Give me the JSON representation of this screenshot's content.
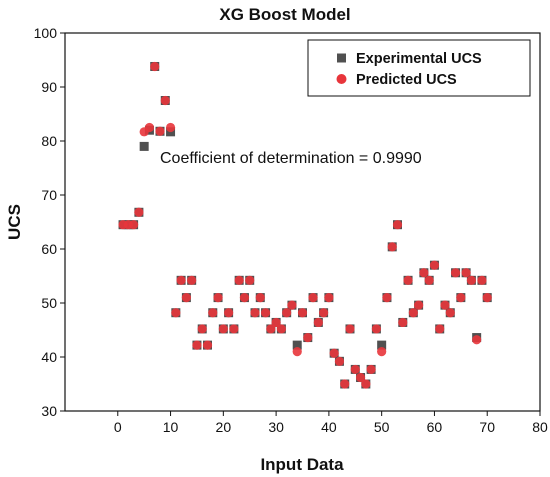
{
  "chart_data": {
    "type": "scatter",
    "title": "XG Boost Model",
    "xlabel": "Input Data",
    "ylabel": "UCS",
    "xlim": [
      -10,
      80
    ],
    "ylim": [
      30,
      100
    ],
    "xticks": [
      0,
      10,
      20,
      30,
      40,
      50,
      60,
      70,
      80
    ],
    "yticks": [
      30,
      40,
      50,
      60,
      70,
      80,
      90,
      100
    ],
    "annotation": "Coefficient of determination = 0.9990",
    "legend_position": "top-right",
    "series": [
      {
        "name": "Experimental UCS",
        "marker": "square",
        "color": "#505050",
        "x": [
          1,
          2,
          3,
          4,
          5,
          6,
          7,
          8,
          9,
          10,
          11,
          12,
          13,
          14,
          15,
          16,
          17,
          18,
          19,
          20,
          21,
          22,
          23,
          24,
          25,
          26,
          27,
          28,
          29,
          30,
          31,
          32,
          33,
          34,
          35,
          36,
          37,
          38,
          39,
          40,
          41,
          42,
          43,
          44,
          45,
          46,
          47,
          48,
          49,
          50,
          51,
          52,
          53,
          54,
          55,
          56,
          57,
          58,
          59,
          60,
          61,
          62,
          63,
          64,
          65,
          66,
          67,
          68,
          69,
          70
        ],
        "y": [
          64.5,
          64.5,
          64.5,
          66.8,
          79.0,
          82.0,
          93.8,
          81.8,
          87.5,
          81.7,
          48.2,
          54.2,
          51.0,
          54.2,
          42.2,
          45.2,
          42.2,
          48.2,
          51.0,
          45.2,
          48.2,
          45.2,
          54.2,
          51.0,
          54.2,
          48.2,
          51.0,
          48.2,
          45.2,
          46.4,
          45.2,
          48.2,
          49.6,
          42.2,
          48.2,
          43.6,
          51.0,
          46.4,
          48.2,
          51.0,
          40.7,
          39.2,
          35.0,
          45.2,
          37.7,
          36.2,
          35.0,
          37.7,
          45.2,
          42.2,
          51.0,
          60.4,
          64.5,
          46.4,
          54.2,
          48.2,
          49.6,
          55.6,
          54.2,
          57.0,
          45.2,
          49.6,
          48.2,
          55.6,
          51.0,
          55.6,
          54.2,
          43.6,
          54.2,
          51.0
        ]
      },
      {
        "name": "Predicted UCS",
        "marker": "circle",
        "color": "#e8353b",
        "x": [
          1,
          2,
          3,
          4,
          5,
          6,
          7,
          8,
          9,
          10,
          11,
          12,
          13,
          14,
          15,
          16,
          17,
          18,
          19,
          20,
          21,
          22,
          23,
          24,
          25,
          26,
          27,
          28,
          29,
          30,
          31,
          32,
          33,
          34,
          35,
          36,
          37,
          38,
          39,
          40,
          41,
          42,
          43,
          44,
          45,
          46,
          47,
          48,
          49,
          50,
          51,
          52,
          53,
          54,
          55,
          56,
          57,
          58,
          59,
          60,
          61,
          62,
          63,
          64,
          65,
          66,
          67,
          68,
          69,
          70
        ],
        "y": [
          64.5,
          64.5,
          64.5,
          66.8,
          81.7,
          82.5,
          93.8,
          81.8,
          87.5,
          82.5,
          48.2,
          54.2,
          51.0,
          54.2,
          42.2,
          45.2,
          42.2,
          48.2,
          51.0,
          45.2,
          48.2,
          45.2,
          54.2,
          51.0,
          54.2,
          48.2,
          51.0,
          48.2,
          45.2,
          46.4,
          45.2,
          48.2,
          49.6,
          41.0,
          48.2,
          43.6,
          51.0,
          46.4,
          48.2,
          51.0,
          40.7,
          39.2,
          35.0,
          45.2,
          37.7,
          36.2,
          35.0,
          37.7,
          45.2,
          41.0,
          51.0,
          60.4,
          64.5,
          46.4,
          54.2,
          48.2,
          49.6,
          55.6,
          54.2,
          57.0,
          45.2,
          49.6,
          48.2,
          55.6,
          51.0,
          55.6,
          54.2,
          43.2,
          54.2,
          51.0
        ]
      }
    ]
  }
}
